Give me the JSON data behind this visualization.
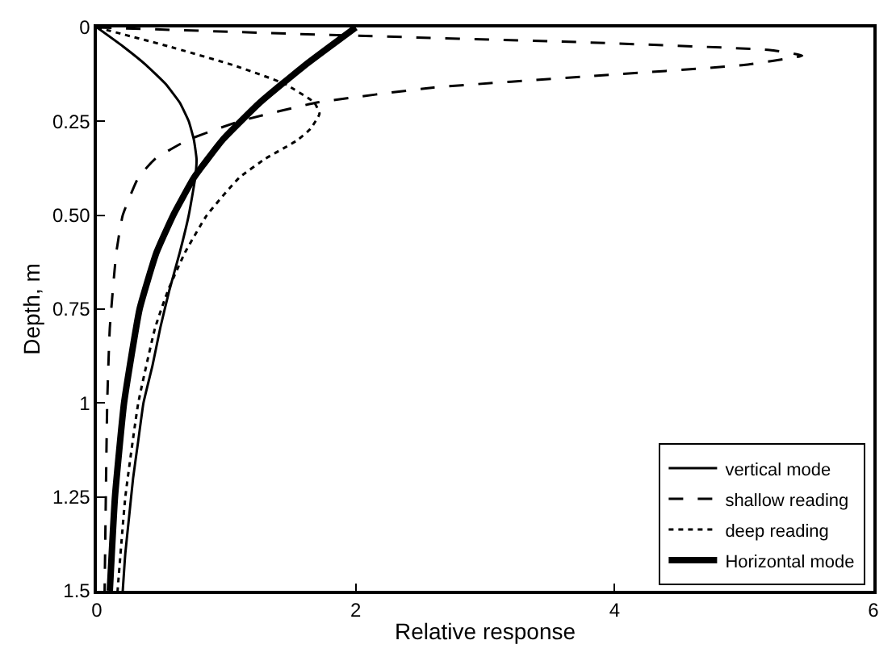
{
  "chart_data": {
    "type": "line",
    "xlabel": "Relative response",
    "ylabel": "Depth, m",
    "xlim": [
      0,
      6
    ],
    "xticks": [
      0,
      2,
      4,
      6
    ],
    "ylim": [
      1.5,
      0
    ],
    "yticks": [
      0,
      0.25,
      {
        "value": 0.5,
        "label": "0.50"
      },
      0.75,
      1,
      1.25,
      1.5
    ],
    "legend": "bottom right",
    "marker": "none",
    "series": [
      {
        "name": "vertical mode",
        "color": "#000000",
        "line_style": "solid",
        "x": [
          0,
          0.2,
          0.38,
          0.53,
          0.64,
          0.71,
          0.75,
          0.77,
          0.76,
          0.71,
          0.64,
          0.56,
          0.49,
          0.43,
          0.36,
          0.32,
          0.28,
          0.25,
          0.22,
          0.2
        ],
        "values": [
          0,
          0.05,
          0.1,
          0.15,
          0.2,
          0.25,
          0.3,
          0.35,
          0.4,
          0.5,
          0.6,
          0.7,
          0.8,
          0.9,
          1.0,
          1.1,
          1.2,
          1.3,
          1.4,
          1.5
        ]
      },
      {
        "name": "shallow reading",
        "color": "#000000",
        "line_style": "dashed",
        "x": [
          0,
          1.8,
          3.8,
          5.2,
          5.45,
          5.0,
          3.8,
          2.6,
          1.7,
          1.1,
          0.7,
          0.45,
          0.32,
          0.2,
          0.15,
          0.1,
          0.08,
          0.06
        ],
        "values": [
          0,
          0.02,
          0.04,
          0.06,
          0.075,
          0.1,
          0.13,
          0.16,
          0.2,
          0.25,
          0.3,
          0.35,
          0.4,
          0.5,
          0.6,
          0.8,
          1.0,
          1.5
        ]
      },
      {
        "name": "deep reading",
        "color": "#000000",
        "line_style": "dotted",
        "x": [
          0,
          0.55,
          1.05,
          1.45,
          1.68,
          1.72,
          1.65,
          1.55,
          1.3,
          1.1,
          0.85,
          0.68,
          0.55,
          0.45,
          0.32,
          0.22,
          0.16
        ],
        "values": [
          0,
          0.05,
          0.1,
          0.15,
          0.2,
          0.23,
          0.27,
          0.3,
          0.35,
          0.4,
          0.5,
          0.6,
          0.7,
          0.8,
          1.0,
          1.25,
          1.5
        ]
      },
      {
        "name": "Horizontal mode",
        "color": "#000000",
        "line_style": "solid",
        "x": [
          2,
          1.61,
          1.26,
          0.97,
          0.75,
          0.59,
          0.46,
          0.33,
          0.21,
          0.14,
          0.1
        ],
        "values": [
          0,
          0.1,
          0.2,
          0.3,
          0.4,
          0.5,
          0.6,
          0.75,
          1.0,
          1.25,
          1.5
        ]
      }
    ]
  }
}
